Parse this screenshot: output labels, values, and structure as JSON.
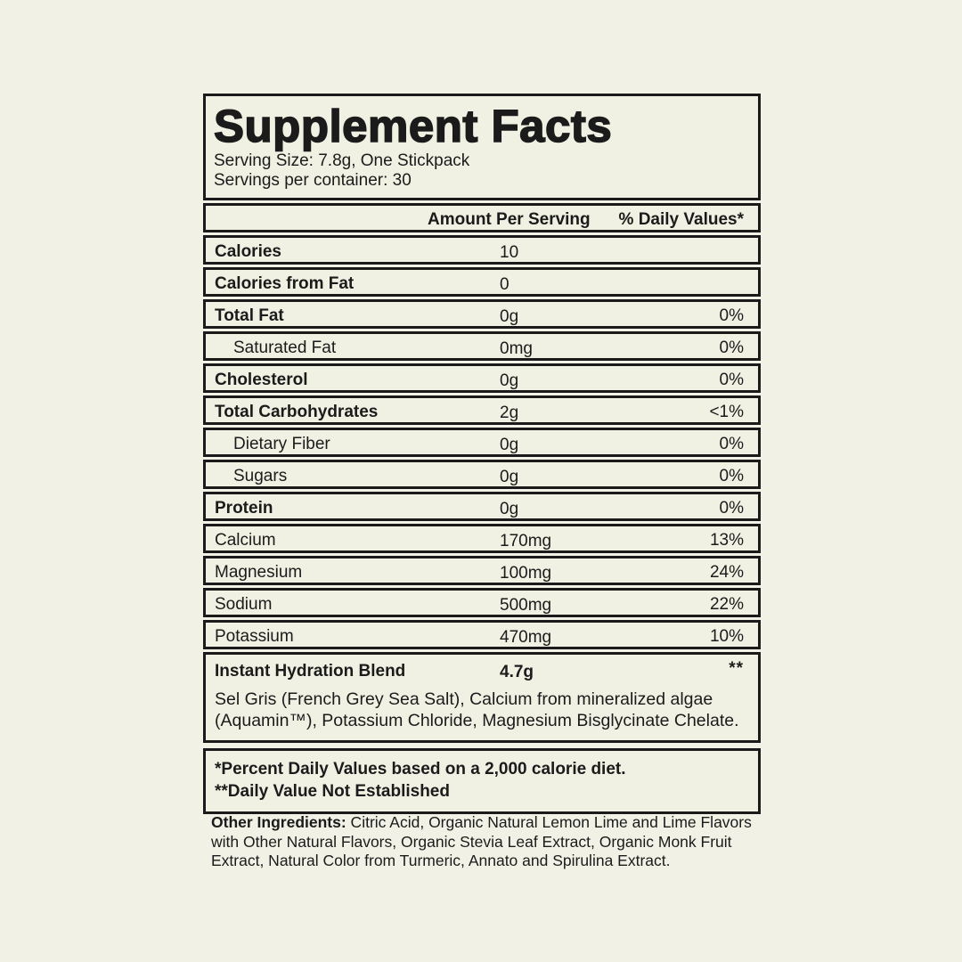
{
  "colors": {
    "background": "#f1f2e5",
    "border": "#1b1b1b",
    "text": "#1b1b1b"
  },
  "label": {
    "title": "Supplement Facts",
    "serving_size": "Serving Size: 7.8g, One Stickpack",
    "servings_per_container": "Servings per container: 30",
    "header": {
      "amount": "Amount Per Serving",
      "daily_value": "% Daily Values*"
    },
    "rows": [
      {
        "label": "Calories",
        "amount": "10",
        "dv": ""
      },
      {
        "label": "Calories from Fat",
        "amount": "0",
        "dv": ""
      },
      {
        "label": "Total Fat",
        "amount": "0g",
        "dv": "0%"
      },
      {
        "label": "Saturated Fat",
        "amount": "0mg",
        "dv": "0%"
      },
      {
        "label": "Cholesterol",
        "amount": "0g",
        "dv": "0%"
      },
      {
        "label": "Total Carbohydrates",
        "amount": "2g",
        "dv": "<1%"
      },
      {
        "label": "Dietary Fiber",
        "amount": "0g",
        "dv": "0%"
      },
      {
        "label": "Sugars",
        "amount": "0g",
        "dv": "0%"
      },
      {
        "label": "Protein",
        "amount": "0g",
        "dv": "0%"
      },
      {
        "label": "Calcium",
        "amount": "170mg",
        "dv": "13%"
      },
      {
        "label": "Magnesium",
        "amount": "100mg",
        "dv": "24%"
      },
      {
        "label": "Sodium",
        "amount": "500mg",
        "dv": "22%"
      },
      {
        "label": "Potassium",
        "amount": "470mg",
        "dv": "10%"
      }
    ],
    "blend": {
      "label": "Instant Hydration Blend",
      "amount": "4.7g",
      "dv": "**",
      "description": "Sel Gris (French Grey Sea Salt), Calcium from mineralized algae (Aquamin™), Potassium Chloride, Magnesium Bisglycinate Chelate."
    },
    "footnote1": "*Percent Daily Values based on a 2,000 calorie diet.",
    "footnote2": "**Daily Value Not Established"
  },
  "other_ingredients": {
    "label": "Other Ingredients:",
    "text": " Citric Acid, Organic Natural Lemon Lime and Lime Flavors with Other Natural Flavors, Organic Stevia Leaf Extract, Organic Monk Fruit Extract, Natural Color from Turmeric, Annato and Spirulina Extract."
  }
}
